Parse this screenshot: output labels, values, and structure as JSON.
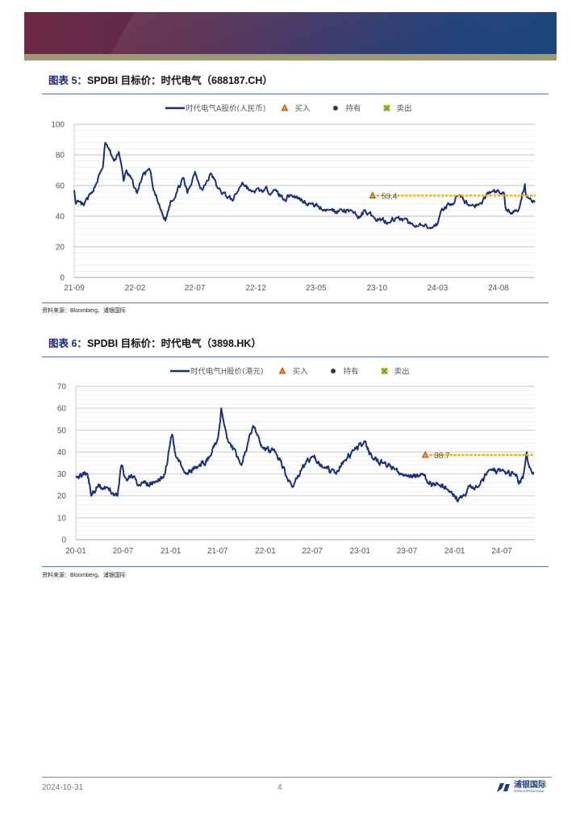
{
  "header": {
    "brand_colors": [
      "#6e2a44",
      "#1c467e",
      "#9c9a74"
    ]
  },
  "figures": [
    {
      "label": "图表 5：",
      "title": "SPDBI 目标价：时代电气（688187.CH）",
      "source": "资料来源：Bloomberg、浦银国际"
    },
    {
      "label": "图表 6：",
      "title": "SPDBI 目标价：时代电气（3898.HK）",
      "source": "资料来源：Bloomberg、浦银国际"
    }
  ],
  "chart_data": [
    {
      "type": "line",
      "ylim": [
        0,
        100
      ],
      "yticks": [
        0,
        20,
        40,
        60,
        80,
        100
      ],
      "xlim": [
        "2021-09-01",
        "2024-10-31"
      ],
      "xticks": [
        "21-09",
        "22-02",
        "22-07",
        "22-12",
        "23-05",
        "23-10",
        "24-03",
        "24-08"
      ],
      "grid": true,
      "legend": "top",
      "legend_items": [
        {
          "name": "时代电气A股价(人民币)",
          "icon": "line",
          "color": "#1c2f7e"
        },
        {
          "name": "买入",
          "icon": "triangle",
          "color": "#e0a800"
        },
        {
          "name": "持有",
          "icon": "circle",
          "color": "#1c2f7e"
        },
        {
          "name": "卖出",
          "icon": "x-square",
          "color": "#2a9d8f"
        }
      ],
      "target": {
        "date": "2023-09-20",
        "value": 53.4,
        "label": "53.4",
        "rating": "买入",
        "color": "#f2b600"
      },
      "series": [
        {
          "name": "时代电气A股价(人民币)",
          "color": "#1c2f7e",
          "points": [
            [
              "2021-09-01",
              57
            ],
            [
              "2021-09-05",
              48
            ],
            [
              "2021-09-25",
              47
            ],
            [
              "2021-10-15",
              55
            ],
            [
              "2021-11-12",
              72
            ],
            [
              "2021-11-18",
              88
            ],
            [
              "2021-12-10",
              76
            ],
            [
              "2021-12-22",
              82
            ],
            [
              "2022-01-03",
              63
            ],
            [
              "2022-01-10",
              70
            ],
            [
              "2022-02-06",
              55
            ],
            [
              "2022-02-20",
              67
            ],
            [
              "2022-03-10",
              70
            ],
            [
              "2022-03-18",
              58
            ],
            [
              "2022-04-06",
              44
            ],
            [
              "2022-04-18",
              37
            ],
            [
              "2022-05-01",
              50
            ],
            [
              "2022-05-15",
              55
            ],
            [
              "2022-06-01",
              65
            ],
            [
              "2022-06-12",
              55
            ],
            [
              "2022-07-01",
              69
            ],
            [
              "2022-07-20",
              57
            ],
            [
              "2022-08-10",
              68
            ],
            [
              "2022-08-28",
              58
            ],
            [
              "2022-10-04",
              50
            ],
            [
              "2022-10-28",
              62
            ],
            [
              "2022-11-20",
              56
            ],
            [
              "2023-01-18",
              57
            ],
            [
              "2023-02-10",
              51
            ],
            [
              "2023-02-25",
              54
            ],
            [
              "2023-04-18",
              48
            ],
            [
              "2023-06-01",
              44
            ],
            [
              "2023-08-01",
              43
            ],
            [
              "2023-08-18",
              39
            ],
            [
              "2023-09-01",
              44
            ],
            [
              "2023-09-20",
              40
            ],
            [
              "2023-11-01",
              36
            ],
            [
              "2023-11-18",
              39
            ],
            [
              "2024-01-01",
              34
            ],
            [
              "2024-02-12",
              32
            ],
            [
              "2024-03-01",
              35
            ],
            [
              "2024-03-12",
              45
            ],
            [
              "2024-04-01",
              47
            ],
            [
              "2024-04-18",
              53
            ],
            [
              "2024-05-22",
              47
            ],
            [
              "2024-06-20",
              48
            ],
            [
              "2024-07-01",
              54
            ],
            [
              "2024-07-15",
              56
            ],
            [
              "2024-08-15",
              55
            ],
            [
              "2024-08-20",
              44
            ],
            [
              "2024-09-18",
              43
            ],
            [
              "2024-09-26",
              50
            ],
            [
              "2024-10-06",
              61
            ],
            [
              "2024-10-10",
              53
            ],
            [
              "2024-10-31",
              49
            ]
          ]
        }
      ]
    },
    {
      "type": "line",
      "ylim": [
        0,
        70
      ],
      "yticks": [
        0,
        10,
        20,
        30,
        40,
        50,
        60,
        70
      ],
      "xlim": [
        "2020-01-01",
        "2024-11-05"
      ],
      "xticks": [
        "20-01",
        "20-07",
        "21-01",
        "21-07",
        "22-01",
        "22-07",
        "23-01",
        "23-07",
        "24-01",
        "24-07"
      ],
      "grid": true,
      "legend": "top",
      "legend_items": [
        {
          "name": "时代电气H股价(港元)",
          "icon": "line",
          "color": "#1c2f7e"
        },
        {
          "name": "买入",
          "icon": "triangle",
          "color": "#e0a800"
        },
        {
          "name": "持有",
          "icon": "circle",
          "color": "#1c2f7e"
        },
        {
          "name": "卖出",
          "icon": "x-square",
          "color": "#2a9d8f"
        }
      ],
      "target": {
        "date": "2023-09-10",
        "value": 38.7,
        "label": "38.7",
        "rating": "买入",
        "color": "#f2b600"
      },
      "series": [
        {
          "name": "时代电气H股价(港元)",
          "color": "#1c2f7e",
          "points": [
            [
              "2020-01-01",
              29
            ],
            [
              "2020-02-15",
              30
            ],
            [
              "2020-03-01",
              20
            ],
            [
              "2020-03-20",
              24
            ],
            [
              "2020-05-01",
              24
            ],
            [
              "2020-06-10",
              20
            ],
            [
              "2020-06-25",
              34
            ],
            [
              "2020-07-15",
              27
            ],
            [
              "2020-08-10",
              29
            ],
            [
              "2020-09-01",
              25
            ],
            [
              "2020-11-01",
              26
            ],
            [
              "2020-12-10",
              30
            ],
            [
              "2021-01-06",
              48
            ],
            [
              "2021-01-20",
              38
            ],
            [
              "2021-03-01",
              30
            ],
            [
              "2021-04-15",
              33
            ],
            [
              "2021-06-01",
              38
            ],
            [
              "2021-07-01",
              46
            ],
            [
              "2021-07-15",
              60
            ],
            [
              "2021-08-10",
              45
            ],
            [
              "2021-10-01",
              34
            ],
            [
              "2021-11-15",
              52
            ],
            [
              "2021-12-20",
              42
            ],
            [
              "2022-02-10",
              40
            ],
            [
              "2022-04-15",
              24
            ],
            [
              "2022-05-20",
              32
            ],
            [
              "2022-07-01",
              38
            ],
            [
              "2022-08-10",
              33
            ],
            [
              "2022-10-01",
              30
            ],
            [
              "2022-11-01",
              36
            ],
            [
              "2023-01-20",
              45
            ],
            [
              "2023-02-20",
              37
            ],
            [
              "2023-04-01",
              35
            ],
            [
              "2023-05-15",
              32
            ],
            [
              "2023-07-01",
              29
            ],
            [
              "2023-09-01",
              30
            ],
            [
              "2023-09-20",
              26
            ],
            [
              "2023-11-01",
              25
            ],
            [
              "2023-12-10",
              22
            ],
            [
              "2024-01-01",
              20
            ],
            [
              "2024-01-15",
              18
            ],
            [
              "2024-02-10",
              20
            ],
            [
              "2024-03-01",
              25
            ],
            [
              "2024-04-01",
              24
            ],
            [
              "2024-05-15",
              32
            ],
            [
              "2024-08-20",
              30
            ],
            [
              "2024-09-10",
              26
            ],
            [
              "2024-09-20",
              28
            ],
            [
              "2024-10-05",
              40
            ],
            [
              "2024-10-15",
              33
            ],
            [
              "2024-10-31",
              31
            ]
          ]
        }
      ]
    }
  ],
  "footer": {
    "date": "2024-10-31",
    "page": "4",
    "logo_text": "浦银国际",
    "logo_sub": "SPDB INTERNATIONAL"
  }
}
